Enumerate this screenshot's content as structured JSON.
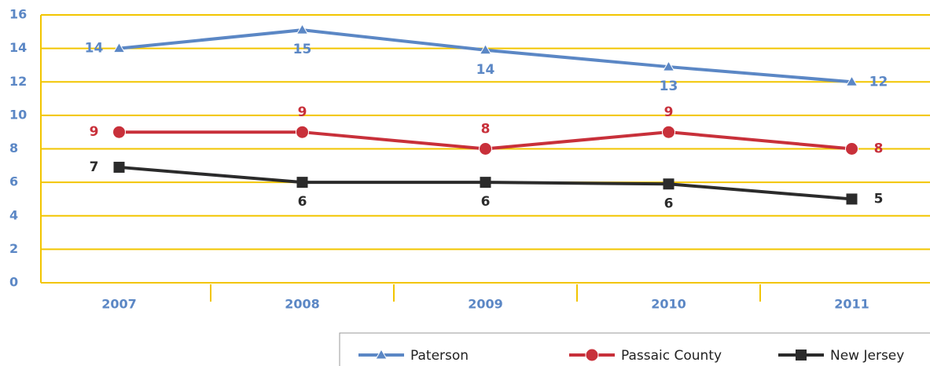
{
  "chart_data": {
    "type": "line",
    "categories": [
      "2007",
      "2008",
      "2009",
      "2010",
      "2011"
    ],
    "series": [
      {
        "name": "Paterson",
        "color": "#5b87c5",
        "marker": "triangle",
        "values": [
          14,
          15.1,
          13.9,
          12.9,
          12
        ],
        "value_labels": [
          "14",
          "15",
          "14",
          "13",
          "12"
        ]
      },
      {
        "name": "Passaic County",
        "color": "#c8303a",
        "marker": "circle",
        "values": [
          9,
          9,
          8,
          9,
          8
        ]
      },
      {
        "name": "New Jersey",
        "color": "#2b2b2b",
        "marker": "square",
        "values": [
          6.9,
          6,
          6,
          5.9,
          5
        ],
        "value_labels": [
          "7",
          "6",
          "6",
          "6",
          "5"
        ]
      }
    ],
    "ylim": [
      0,
      16
    ],
    "yticks": [
      0,
      2,
      4,
      6,
      8,
      10,
      12,
      14,
      16
    ],
    "grid": true,
    "legend": "bottom-right"
  }
}
